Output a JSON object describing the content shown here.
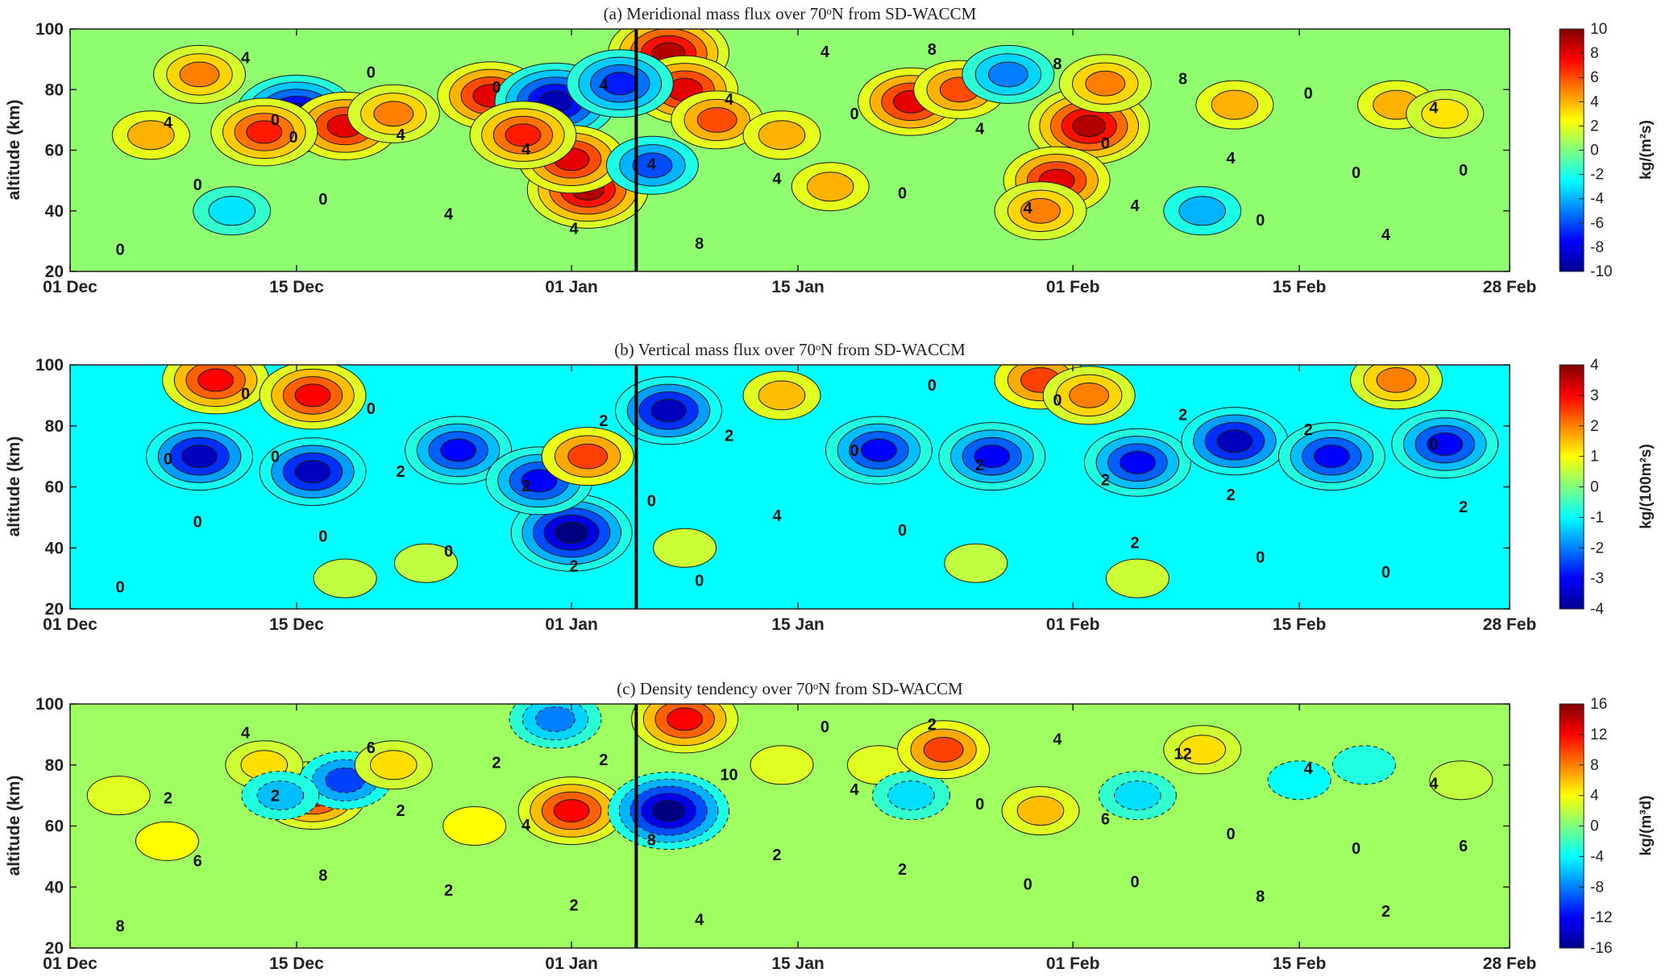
{
  "chart_data": [
    {
      "type": "heatmap",
      "title": "(a) Meridional mass flux over 70ᵒN from SD-WACCM",
      "ylabel": "altitude (km)",
      "xlabel": "",
      "x_ticks": [
        "01 Dec",
        "15 Dec",
        "01 Jan",
        "15 Jan",
        "01 Feb",
        "15 Feb",
        "28 Feb"
      ],
      "x_tick_days": [
        0,
        14,
        31,
        45,
        62,
        76,
        89
      ],
      "x_range_days": [
        0,
        89
      ],
      "y_ticks": [
        "20",
        "40",
        "60",
        "80",
        "100"
      ],
      "ylim": [
        20,
        100
      ],
      "colorbar_label": "kg/(m²s)",
      "colorbar_ticks": [
        "10",
        "8",
        "6",
        "4",
        "2",
        "0",
        "-2",
        "-4",
        "-6",
        "-8",
        "-10"
      ],
      "clim": [
        -10,
        10
      ],
      "colormap": "jet",
      "contour_labels": [
        "0",
        "4",
        "4",
        "0",
        "8",
        "4",
        "0",
        "4",
        "0",
        "8",
        "4",
        "4",
        "0",
        "0",
        "8",
        "4",
        "0",
        "4",
        "4",
        "0",
        "4",
        "4",
        "0",
        "4",
        "4",
        "0",
        "0",
        "4",
        "8",
        "4",
        "4",
        "0",
        "0",
        "4",
        "0"
      ],
      "vertical_marker_day": 35,
      "features": [
        {
          "day": 14,
          "alt": 72,
          "value": -9
        },
        {
          "day": 17,
          "alt": 68,
          "value": 8
        },
        {
          "day": 12,
          "alt": 66,
          "value": 7
        },
        {
          "day": 20,
          "alt": 72,
          "value": 5
        },
        {
          "day": 26,
          "alt": 78,
          "value": 8
        },
        {
          "day": 30,
          "alt": 76,
          "value": -9
        },
        {
          "day": 32,
          "alt": 47,
          "value": 9
        },
        {
          "day": 31,
          "alt": 57,
          "value": 8
        },
        {
          "day": 28,
          "alt": 65,
          "value": 7
        },
        {
          "day": 37,
          "alt": 92,
          "value": 9
        },
        {
          "day": 38,
          "alt": 80,
          "value": 8
        },
        {
          "day": 40,
          "alt": 70,
          "value": 6
        },
        {
          "day": 34,
          "alt": 82,
          "value": -7
        },
        {
          "day": 36,
          "alt": 55,
          "value": -6
        },
        {
          "day": 52,
          "alt": 76,
          "value": 8
        },
        {
          "day": 55,
          "alt": 80,
          "value": 6
        },
        {
          "day": 63,
          "alt": 68,
          "value": 9
        },
        {
          "day": 61,
          "alt": 50,
          "value": 8
        },
        {
          "day": 64,
          "alt": 82,
          "value": 5
        },
        {
          "day": 60,
          "alt": 40,
          "value": 5
        },
        {
          "day": 82,
          "alt": 75,
          "value": 4
        },
        {
          "day": 72,
          "alt": 75,
          "value": 4
        },
        {
          "day": 85,
          "alt": 72,
          "value": 3
        },
        {
          "day": 5,
          "alt": 65,
          "value": 4
        },
        {
          "day": 8,
          "alt": 85,
          "value": 5
        },
        {
          "day": 44,
          "alt": 65,
          "value": 4
        },
        {
          "day": 47,
          "alt": 48,
          "value": 4
        },
        {
          "day": 70,
          "alt": 40,
          "value": -4
        },
        {
          "day": 58,
          "alt": 85,
          "value": -5
        },
        {
          "day": 10,
          "alt": 40,
          "value": -3
        }
      ]
    },
    {
      "type": "heatmap",
      "title": "(b) Vertical mass flux over 70ᵒN from SD-WACCM",
      "ylabel": "altitude (km)",
      "xlabel": "",
      "x_ticks": [
        "01 Dec",
        "15 Dec",
        "01 Jan",
        "15 Jan",
        "01 Feb",
        "15 Feb",
        "28 Feb"
      ],
      "x_tick_days": [
        0,
        14,
        31,
        45,
        62,
        76,
        89
      ],
      "x_range_days": [
        0,
        89
      ],
      "y_ticks": [
        "20",
        "40",
        "60",
        "80",
        "100"
      ],
      "ylim": [
        20,
        100
      ],
      "colorbar_label": "kg/(100m²s)",
      "colorbar_ticks": [
        "4",
        "3",
        "2",
        "1",
        "0",
        "-1",
        "-2",
        "-3",
        "-4"
      ],
      "clim": [
        -4,
        4
      ],
      "colormap": "jet",
      "contour_labels": [
        "0",
        "2",
        "2",
        "2",
        "0",
        "2",
        "0",
        "2",
        "0",
        "0",
        "2",
        "0",
        "0",
        "0",
        "2",
        "0",
        "0",
        "2",
        "0",
        "2",
        "4",
        "0",
        "2",
        "2",
        "0",
        "0",
        "0",
        "2",
        "0",
        "0"
      ],
      "vertical_marker_day": 35,
      "features": [
        {
          "day": 8,
          "alt": 70,
          "value": -3.5
        },
        {
          "day": 15,
          "alt": 65,
          "value": -3.5
        },
        {
          "day": 24,
          "alt": 72,
          "value": -3
        },
        {
          "day": 31,
          "alt": 45,
          "value": -4
        },
        {
          "day": 29,
          "alt": 62,
          "value": -3
        },
        {
          "day": 37,
          "alt": 85,
          "value": -3.5
        },
        {
          "day": 50,
          "alt": 72,
          "value": -3
        },
        {
          "day": 57,
          "alt": 70,
          "value": -3
        },
        {
          "day": 66,
          "alt": 68,
          "value": -3
        },
        {
          "day": 72,
          "alt": 75,
          "value": -3.5
        },
        {
          "day": 78,
          "alt": 70,
          "value": -3
        },
        {
          "day": 85,
          "alt": 74,
          "value": -3
        },
        {
          "day": 9,
          "alt": 95,
          "value": 3
        },
        {
          "day": 15,
          "alt": 90,
          "value": 3
        },
        {
          "day": 32,
          "alt": 70,
          "value": 2.5
        },
        {
          "day": 60,
          "alt": 95,
          "value": 2.5
        },
        {
          "day": 63,
          "alt": 90,
          "value": 2
        },
        {
          "day": 82,
          "alt": 95,
          "value": 2
        },
        {
          "day": 44,
          "alt": 90,
          "value": 1.5
        },
        {
          "day": 38,
          "alt": 40,
          "value": 0.6
        },
        {
          "day": 17,
          "alt": 30,
          "value": 0.5
        },
        {
          "day": 22,
          "alt": 35,
          "value": 0.5
        },
        {
          "day": 56,
          "alt": 35,
          "value": 0.5
        },
        {
          "day": 66,
          "alt": 30,
          "value": 0.6
        }
      ]
    },
    {
      "type": "heatmap",
      "title": "(c) Density tendency over 70ᵒN from SD-WACCM",
      "ylabel": "altitude (km)",
      "xlabel": "",
      "x_ticks": [
        "01 Dec",
        "15 Dec",
        "01 Jan",
        "15 Jan",
        "01 Feb",
        "15 Feb",
        "28 Feb"
      ],
      "x_tick_days": [
        0,
        14,
        31,
        45,
        62,
        76,
        89
      ],
      "x_range_days": [
        0,
        89
      ],
      "y_ticks": [
        "20",
        "40",
        "60",
        "80",
        "100"
      ],
      "ylim": [
        20,
        100
      ],
      "colorbar_label": "kg/(m³d)",
      "colorbar_ticks": [
        "16",
        "12",
        "8",
        "4",
        "0",
        "-4",
        "-8",
        "-12",
        "-16"
      ],
      "clim": [
        -16,
        16
      ],
      "colormap": "jet",
      "contour_labels": [
        "2",
        "0",
        "2",
        "6",
        "2",
        "2",
        "8",
        "10",
        "6",
        "4",
        "4",
        "2",
        "4",
        "8",
        "12",
        "8",
        "8",
        "0",
        "2",
        "4",
        "2",
        "4",
        "6",
        "2",
        "4",
        "2",
        "6",
        "0",
        "4",
        "2",
        "0",
        "2",
        "0",
        "0"
      ],
      "vertical_marker_day": 35,
      "features": [
        {
          "day": 15,
          "alt": 70,
          "value": 12
        },
        {
          "day": 17,
          "alt": 75,
          "value": -10
        },
        {
          "day": 31,
          "alt": 65,
          "value": 12
        },
        {
          "day": 30,
          "alt": 95,
          "value": -8
        },
        {
          "day": 37,
          "alt": 65,
          "value": -16
        },
        {
          "day": 38,
          "alt": 95,
          "value": 12
        },
        {
          "day": 12,
          "alt": 80,
          "value": 5
        },
        {
          "day": 13,
          "alt": 70,
          "value": -6
        },
        {
          "day": 20,
          "alt": 80,
          "value": 5
        },
        {
          "day": 50,
          "alt": 80,
          "value": 3
        },
        {
          "day": 52,
          "alt": 70,
          "value": -5
        },
        {
          "day": 54,
          "alt": 85,
          "value": 10
        },
        {
          "day": 60,
          "alt": 65,
          "value": 6
        },
        {
          "day": 66,
          "alt": 70,
          "value": -5
        },
        {
          "day": 70,
          "alt": 85,
          "value": 5
        },
        {
          "day": 76,
          "alt": 75,
          "value": -4
        },
        {
          "day": 3,
          "alt": 70,
          "value": 3
        },
        {
          "day": 6,
          "alt": 55,
          "value": 4
        },
        {
          "day": 25,
          "alt": 60,
          "value": 4
        },
        {
          "day": 44,
          "alt": 80,
          "value": 3
        },
        {
          "day": 80,
          "alt": 80,
          "value": -3
        },
        {
          "day": 86,
          "alt": 75,
          "value": 2
        }
      ]
    }
  ]
}
